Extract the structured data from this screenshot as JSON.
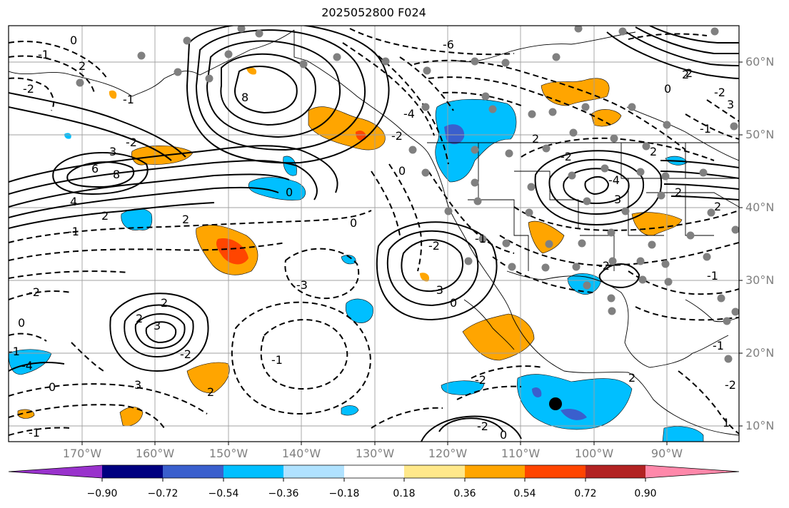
{
  "title": "2025052800 F024",
  "lat_labels": [
    "60°N",
    "50°N",
    "40°N",
    "30°N",
    "20°N",
    "10°N"
  ],
  "lon_labels": [
    "170°W",
    "160°W",
    "150°W",
    "140°W",
    "130°W",
    "120°W",
    "110°W",
    "100°W",
    "90°W"
  ],
  "colorbar": {
    "ticks": [
      "−0.90",
      "−0.72",
      "−0.54",
      "−0.36",
      "−0.18",
      "0.18",
      "0.36",
      "0.54",
      "0.72",
      "0.90"
    ],
    "colors": [
      "#9932cc",
      "#000080",
      "#3a5fcd",
      "#00bfff",
      "#b0e2ff",
      "#ffffff",
      "#ffe88a",
      "#ffa500",
      "#ff4500",
      "#b22222",
      "#ff88aa"
    ]
  },
  "contour_labels": [
    "0",
    "-1",
    "2",
    "-2",
    "-1",
    "8",
    "6",
    "8",
    "4",
    "2",
    "-1",
    "2",
    "3",
    "-2",
    "0",
    "-3",
    "-4",
    "0",
    "-6",
    "2",
    "-2",
    "2",
    "-4",
    "3",
    "2",
    "0",
    "-2",
    "3",
    "-1",
    "2",
    "0",
    "-3",
    "-2",
    "0",
    "-1",
    "-2",
    "0",
    "2",
    "3",
    "2",
    "-2",
    "-1",
    "-4",
    "0",
    "3",
    "-1",
    "2",
    "-1",
    "-2",
    "-2",
    "0",
    "-2",
    "2",
    "-1",
    "2",
    "-2",
    "-1",
    "1",
    "2",
    "-2"
  ],
  "colors": {
    "contour": "#000000",
    "grid": "#a0a0a0",
    "coast": "#000000",
    "station": "#808080"
  }
}
